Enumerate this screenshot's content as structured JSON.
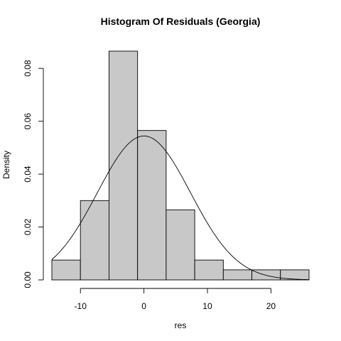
{
  "chart_data": {
    "type": "bar",
    "title": "Histogram Of Residuals (Georgia)",
    "xlabel": "res",
    "ylabel": "Density",
    "bin_edges": [
      -14.5,
      -10,
      -5.5,
      -1,
      3.5,
      8,
      12.5,
      17,
      21.5,
      26
    ],
    "values": [
      0.0075,
      0.03,
      0.0865,
      0.0565,
      0.0265,
      0.0075,
      0.0038,
      0.0038,
      0.0038
    ],
    "x_ticks": [
      -10,
      0,
      10,
      20
    ],
    "x_tick_labels": [
      "-10",
      "0",
      "10",
      "20"
    ],
    "y_ticks": [
      0,
      0.02,
      0.04,
      0.06,
      0.08
    ],
    "y_tick_labels": [
      "0.00",
      "0.02",
      "0.04",
      "0.06",
      "0.08"
    ],
    "xlim": [
      -14.5,
      26
    ],
    "ylim": [
      0,
      0.0865
    ],
    "normal_curve": {
      "mean": 0,
      "sd": 7.33
    },
    "grid": false
  }
}
